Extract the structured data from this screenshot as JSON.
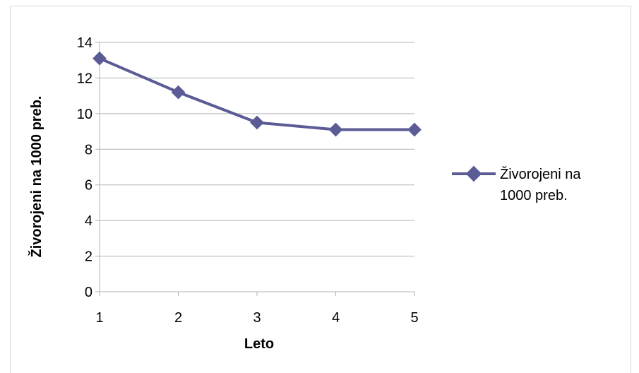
{
  "chart_data": {
    "type": "line",
    "x": [
      1,
      2,
      3,
      4,
      5
    ],
    "series": [
      {
        "name": "Živorojeni na 1000 preb.",
        "values": [
          13.1,
          11.2,
          9.5,
          9.1,
          9.1
        ],
        "color": "#5b5b96"
      }
    ],
    "xlabel": "Leto",
    "ylabel": "Živorojeni na 1000 preb.",
    "xticks": [
      "1",
      "2",
      "3",
      "4",
      "5"
    ],
    "yticks": [
      "0",
      "2",
      "4",
      "6",
      "8",
      "10",
      "12",
      "14"
    ],
    "ylim": [
      0,
      14
    ],
    "grid": "horizontal",
    "legend_position": "right",
    "legend_lines": [
      "Živorojeni na",
      "1000 preb."
    ],
    "gridline_color": "#b3b3b3",
    "axis_color": "#b3b3b3"
  }
}
